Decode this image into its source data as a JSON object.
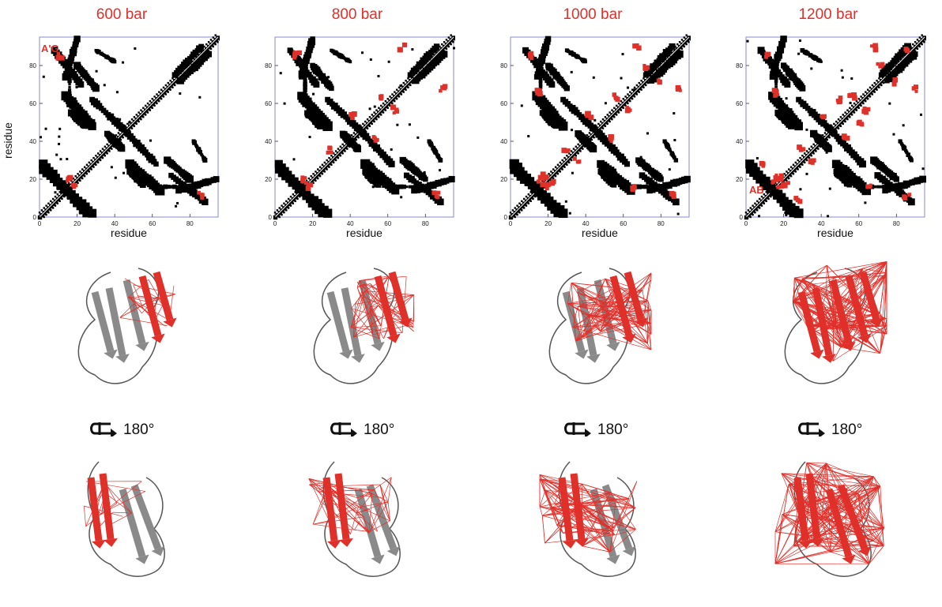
{
  "panels": [
    {
      "title": "600 bar",
      "annotation": "A'G",
      "intensity": 1
    },
    {
      "title": "800 bar",
      "annotation": "",
      "intensity": 2
    },
    {
      "title": "1000 bar",
      "annotation": "",
      "intensity": 3
    },
    {
      "title": "1200 bar",
      "annotation": "AB",
      "intensity": 4
    }
  ],
  "axes": {
    "xlabel": "residue",
    "ylabel": "residue",
    "xticks": [
      "0",
      "20",
      "40",
      "60",
      "80"
    ],
    "yticks": [
      "0",
      "20",
      "40",
      "60",
      "80"
    ]
  },
  "rotation_label": "180°",
  "colors": {
    "highlight": "#e0302a",
    "contact": "#000000",
    "frame": "#8a8ad0",
    "ribbon": "#7a7a7a"
  }
}
